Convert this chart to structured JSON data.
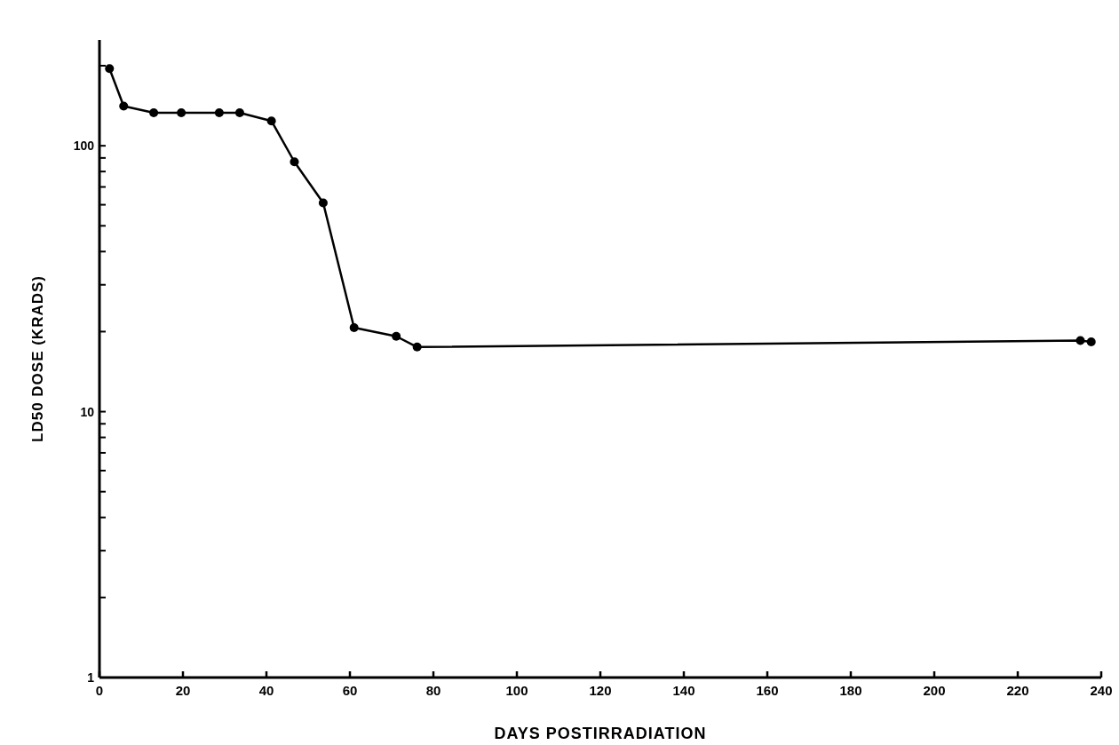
{
  "chart_data": {
    "type": "line",
    "xlabel": "DAYS POSTIRRADIATION",
    "ylabel": "LD50 DOSE (KRADS)",
    "x": [
      2.4,
      5.8,
      13,
      19.6,
      28.7,
      33.6,
      41.2,
      46.7,
      53.6,
      61,
      71.1,
      76.1,
      235,
      237.6
    ],
    "series": [
      {
        "color": "#000000",
        "values": [
          195,
          141,
          133,
          133,
          133,
          133,
          124,
          87,
          61,
          20.7,
          19.2,
          17.5,
          18.5,
          18.3
        ]
      }
    ],
    "log": "y",
    "marker": "circle",
    "line_style": "solid",
    "grid": false,
    "xlim": [
      0,
      240
    ],
    "xticks": [
      0,
      20,
      40,
      60,
      80,
      100,
      120,
      140,
      160,
      180,
      200,
      220,
      240
    ],
    "ylim": [
      1,
      250
    ],
    "yticks": [
      1,
      {
        "value": 2,
        "label": null
      },
      {
        "value": 3,
        "label": null
      },
      {
        "value": 4,
        "label": null
      },
      {
        "value": 5,
        "label": null
      },
      {
        "value": 6,
        "label": null
      },
      {
        "value": 7,
        "label": null
      },
      {
        "value": 8,
        "label": null
      },
      {
        "value": 9,
        "label": null
      },
      10,
      {
        "value": 20,
        "label": null
      },
      {
        "value": 30,
        "label": null
      },
      {
        "value": 40,
        "label": null
      },
      {
        "value": 50,
        "label": null
      },
      {
        "value": 60,
        "label": null
      },
      {
        "value": 70,
        "label": null
      },
      {
        "value": 80,
        "label": null
      },
      {
        "value": 90,
        "label": null
      },
      100,
      {
        "value": 200,
        "label": null
      }
    ]
  }
}
